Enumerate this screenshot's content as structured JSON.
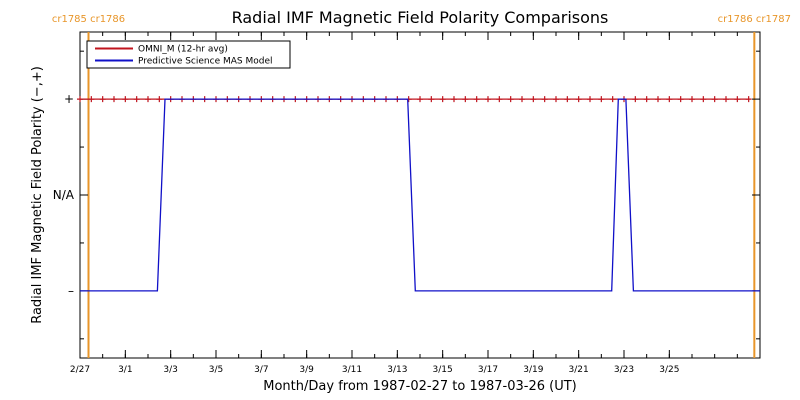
{
  "chart_data": {
    "type": "line",
    "title": "Radial IMF Magnetic Field Polarity Comparisons",
    "xlabel": "Month/Day from 1987-02-27 to 1987-03-26 (UT)",
    "ylabel": "Radial IMF Magnetic Field Polarity (−,+)",
    "xlim": [
      "1987-02-27",
      "1987-03-29"
    ],
    "ylim": [
      -1.7,
      1.7
    ],
    "x_ticks": [
      "2/27",
      "3/1",
      "3/3",
      "3/5",
      "3/7",
      "3/9",
      "3/11",
      "3/13",
      "3/15",
      "3/17",
      "3/19",
      "3/21",
      "3/23",
      "3/25"
    ],
    "y_ticks": [
      {
        "value": 1,
        "label": "+"
      },
      {
        "value": 0,
        "label": "N/A"
      },
      {
        "value": -1,
        "label": "–"
      }
    ],
    "carrington_markers": [
      {
        "date": "1987-02-27 09:00",
        "labels": [
          "cr1785",
          "cr1786"
        ],
        "color": "#e8962a"
      },
      {
        "date": "1987-03-28 18:00",
        "labels": [
          "cr1786",
          "cr1787"
        ],
        "color": "#e8962a"
      }
    ],
    "series": [
      {
        "name": "OMNI_M (12-hr avg)",
        "color": "#c0141e",
        "style": "line+plus",
        "x": [
          "1987-02-27 00:00",
          "1987-02-27 12:00",
          "1987-02-28 00:00",
          "1987-02-28 12:00",
          "1987-03-01 00:00",
          "1987-03-01 12:00",
          "1987-03-02 00:00",
          "1987-03-02 12:00",
          "1987-03-03 00:00",
          "1987-03-03 12:00",
          "1987-03-04 00:00",
          "1987-03-04 12:00",
          "1987-03-05 00:00",
          "1987-03-05 12:00",
          "1987-03-06 00:00",
          "1987-03-06 12:00",
          "1987-03-07 00:00",
          "1987-03-07 12:00",
          "1987-03-08 00:00",
          "1987-03-08 12:00",
          "1987-03-09 00:00",
          "1987-03-09 12:00",
          "1987-03-10 00:00",
          "1987-03-10 12:00",
          "1987-03-11 00:00",
          "1987-03-11 12:00",
          "1987-03-12 00:00",
          "1987-03-12 12:00",
          "1987-03-13 00:00",
          "1987-03-13 12:00",
          "1987-03-14 00:00",
          "1987-03-14 12:00",
          "1987-03-15 00:00",
          "1987-03-15 12:00",
          "1987-03-16 00:00",
          "1987-03-16 12:00",
          "1987-03-17 00:00",
          "1987-03-17 12:00",
          "1987-03-18 00:00",
          "1987-03-18 12:00",
          "1987-03-19 00:00",
          "1987-03-19 12:00",
          "1987-03-20 00:00",
          "1987-03-20 12:00",
          "1987-03-21 00:00",
          "1987-03-21 12:00",
          "1987-03-22 00:00",
          "1987-03-22 12:00",
          "1987-03-23 00:00",
          "1987-03-23 12:00",
          "1987-03-24 00:00",
          "1987-03-24 12:00",
          "1987-03-25 00:00",
          "1987-03-25 12:00",
          "1987-03-26 00:00",
          "1987-03-26 12:00",
          "1987-03-27 00:00",
          "1987-03-27 12:00",
          "1987-03-28 00:00",
          "1987-03-28 12:00"
        ],
        "values": [
          1,
          1,
          1,
          1,
          1,
          1,
          1,
          1,
          1,
          1,
          1,
          1,
          1,
          1,
          1,
          1,
          1,
          1,
          1,
          1,
          1,
          1,
          1,
          1,
          1,
          1,
          1,
          1,
          1,
          1,
          1,
          1,
          1,
          1,
          1,
          1,
          1,
          1,
          1,
          1,
          1,
          1,
          1,
          1,
          1,
          1,
          1,
          1,
          1,
          1,
          1,
          1,
          1,
          1,
          1,
          1,
          1,
          1,
          1,
          1
        ]
      },
      {
        "name": "Predictive Science MAS Model",
        "color": "#1010c8",
        "style": "line",
        "x": [
          "1987-02-27 00:00",
          "1987-03-02 10:00",
          "1987-03-02 18:00",
          "1987-03-13 11:00",
          "1987-03-13 19:00",
          "1987-03-22 11:00",
          "1987-03-22 18:00",
          "1987-03-23 02:00",
          "1987-03-23 10:00",
          "1987-03-29 00:00"
        ],
        "values": [
          -1,
          -1,
          1,
          1,
          -1,
          -1,
          1,
          1,
          -1,
          -1
        ]
      }
    ],
    "legend": {
      "position": "top-left"
    },
    "grid": false
  }
}
